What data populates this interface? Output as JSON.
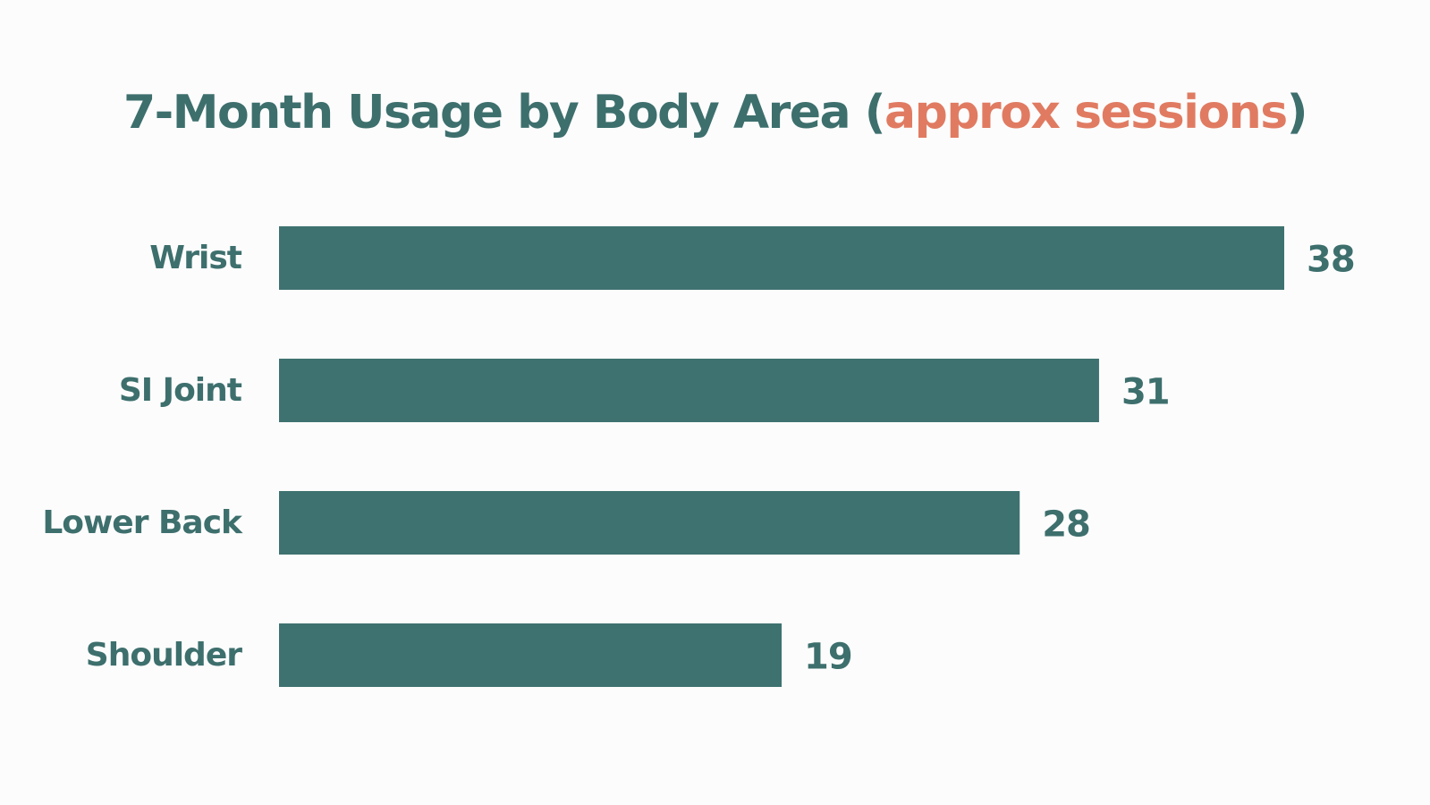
{
  "chart_data": {
    "type": "bar",
    "orientation": "horizontal",
    "title": {
      "main": "7-Month Usage by Body Area (",
      "accent": "approx sessions",
      "close": ")"
    },
    "categories": [
      "Wrist",
      "SI Joint",
      "Lower Back",
      "Shoulder"
    ],
    "values": [
      38,
      31,
      28,
      19
    ],
    "xlim": [
      0,
      38
    ],
    "grid": false,
    "legend": false,
    "data_labels": true
  },
  "colors": {
    "bar": "#3e7270",
    "text": "#3d6f6d",
    "accent": "#e07b62",
    "background": "#fcfcfc"
  }
}
